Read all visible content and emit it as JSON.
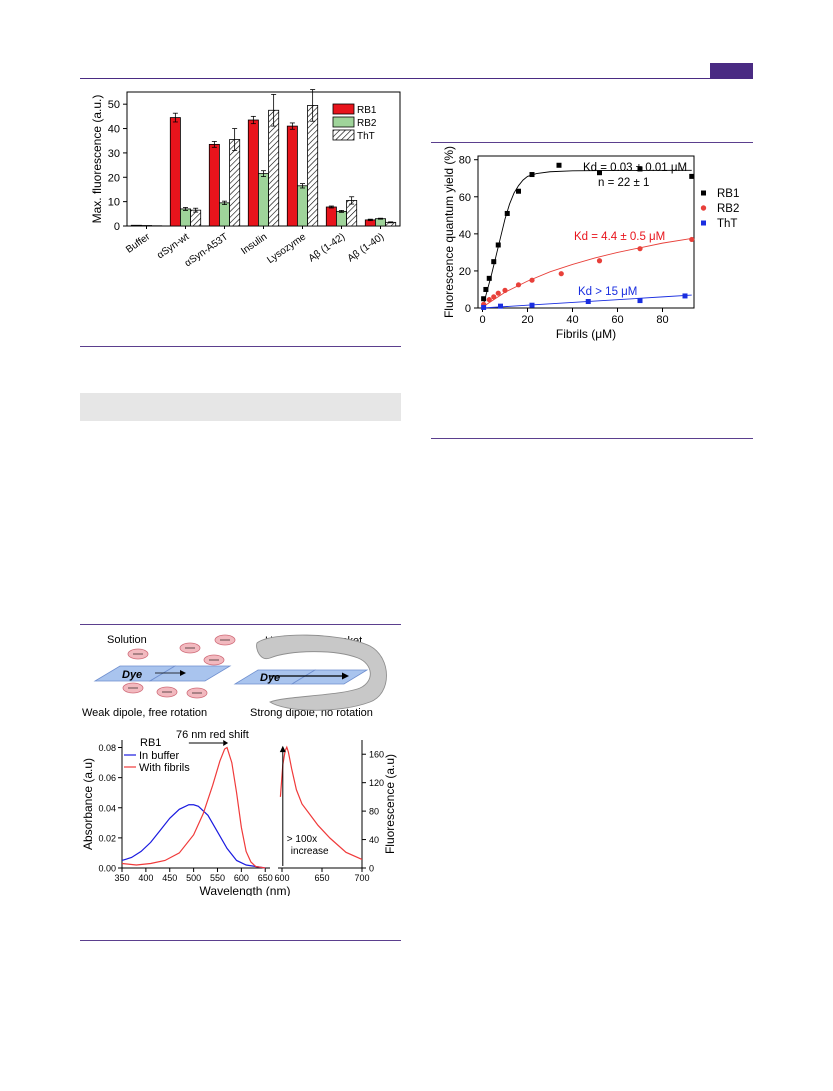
{
  "figure_a": {
    "chart_data": {
      "type": "bar",
      "ylabel": "Max. fluorescence (a.u.)",
      "ylim": [
        0,
        55
      ],
      "yticks": [
        0,
        10,
        20,
        30,
        40,
        50
      ],
      "categories": [
        "Buffer",
        "αSyn-wt",
        "αSyn-A53T",
        "Insulin",
        "Lysozyme",
        "Aβ (1-42)",
        "Aβ (1-40)"
      ],
      "series": [
        {
          "name": "RB1",
          "color": "#e8141c",
          "values": [
            0.3,
            44.5,
            33.5,
            43.5,
            41,
            7.8,
            2.5
          ],
          "errors": [
            0,
            1.8,
            1.2,
            1.5,
            1.3,
            0.4,
            0.3
          ]
        },
        {
          "name": "RB2",
          "color": "#9fd49a",
          "values": [
            0.2,
            7,
            9.5,
            21.5,
            16.5,
            6,
            3
          ],
          "errors": [
            0,
            0.6,
            0.7,
            1.2,
            0.9,
            0.4,
            0.2
          ]
        },
        {
          "name": "ThT",
          "color": "hatch",
          "values": [
            0.1,
            6.5,
            35.5,
            47.5,
            49.5,
            10.5,
            1.5
          ],
          "errors": [
            0,
            0.8,
            4.5,
            6.5,
            6.5,
            1.5,
            0.2
          ]
        }
      ],
      "legend_position": "top-right"
    }
  },
  "figure_b": {
    "chart_data": {
      "type": "scatter",
      "xlabel": "Fibrils (μM)",
      "ylabel": "Fluorescence quantum yield (%)",
      "xlim": [
        -2,
        94
      ],
      "ylim": [
        0,
        82
      ],
      "xticks": [
        0,
        20,
        40,
        60,
        80
      ],
      "yticks": [
        0,
        20,
        40,
        60,
        80
      ],
      "series": [
        {
          "name": "RB1",
          "color": "#000000",
          "marker": "square",
          "points": [
            [
              0.5,
              5
            ],
            [
              1.5,
              10
            ],
            [
              3,
              16
            ],
            [
              5,
              25
            ],
            [
              7,
              34
            ],
            [
              11,
              51
            ],
            [
              16,
              63
            ],
            [
              22,
              72
            ],
            [
              34,
              77
            ],
            [
              52,
              73
            ],
            [
              70,
              75
            ],
            [
              93,
              71
            ]
          ]
        },
        {
          "name": "RB2",
          "color": "#e8403a",
          "marker": "circle",
          "points": [
            [
              0.5,
              2
            ],
            [
              3,
              4.5
            ],
            [
              5,
              6
            ],
            [
              7,
              8
            ],
            [
              10,
              9.5
            ],
            [
              16,
              12.5
            ],
            [
              22,
              15
            ],
            [
              35,
              18.5
            ],
            [
              52,
              25.5
            ],
            [
              70,
              32
            ],
            [
              93,
              37
            ]
          ]
        },
        {
          "name": "ThT",
          "color": "#1a2ee0",
          "marker": "square",
          "points": [
            [
              0.5,
              0.3
            ],
            [
              8,
              1
            ],
            [
              22,
              1.5
            ],
            [
              47,
              3.5
            ],
            [
              70,
              4
            ],
            [
              90,
              6.5
            ]
          ]
        }
      ],
      "annotations": [
        {
          "text": "Kd = 0.03 ± 0.01 μM",
          "color": "#000000"
        },
        {
          "text": "n = 22 ± 1",
          "color": "#000000"
        },
        {
          "text": "Kd = 4.4 ± 0.5 μM",
          "color": "#e8141c"
        },
        {
          "text": "Kd > 15 μM",
          "color": "#1a2ee0"
        }
      ],
      "legend_position": "right"
    }
  },
  "figure_c": {
    "scheme": {
      "solution_label": "Solution",
      "pocket_label": "Hydrophobic pocket",
      "dye_label": "Dye",
      "left_caption": "Weak dipole, free rotation",
      "right_caption": "Strong dipole, no rotation"
    },
    "chart_data": {
      "type": "line",
      "title_annotation": "76 nm red shift",
      "dye_label": "RB1",
      "xlabel": "Wavelength (nm)",
      "ylabel_left": "Absorbance (a.u)",
      "ylabel_right": "Fluorescence (a.u)",
      "left_xlim": [
        350,
        660
      ],
      "left_xticks": [
        350,
        400,
        450,
        500,
        550,
        600,
        650
      ],
      "ylim_left": [
        0,
        0.085
      ],
      "yticks_left": [
        "0.00",
        "0.02",
        "0.04",
        "0.06",
        "0.08"
      ],
      "right_xlim": [
        595,
        700
      ],
      "right_xticks": [
        600,
        650,
        700
      ],
      "ylim_right": [
        0,
        180
      ],
      "yticks_right": [
        0,
        40,
        80,
        120,
        160
      ],
      "increase_note_line1": "> 100x",
      "increase_note_line2": "increase",
      "series": [
        {
          "name": "In buffer",
          "color": "#1a1ae0",
          "axis": "left",
          "x": [
            350,
            370,
            390,
            410,
            430,
            450,
            470,
            490,
            500,
            510,
            530,
            550,
            570,
            590,
            610,
            630,
            650
          ],
          "y": [
            0.005,
            0.007,
            0.011,
            0.017,
            0.025,
            0.033,
            0.039,
            0.042,
            0.042,
            0.041,
            0.035,
            0.024,
            0.013,
            0.005,
            0.002,
            0.001,
            0.0
          ]
        },
        {
          "name": "With fibrils",
          "color": "#f03a3a",
          "axis": "left",
          "x": [
            350,
            380,
            410,
            440,
            470,
            500,
            520,
            540,
            555,
            565,
            570,
            580,
            590,
            600,
            610,
            620,
            630,
            650
          ],
          "y": [
            0.003,
            0.002,
            0.003,
            0.005,
            0.01,
            0.022,
            0.036,
            0.055,
            0.071,
            0.079,
            0.08,
            0.07,
            0.05,
            0.027,
            0.011,
            0.004,
            0.001,
            0.0
          ]
        },
        {
          "name": "Fluorescence",
          "color": "#f03a3a",
          "axis": "right",
          "x": [
            598,
            601,
            604,
            606,
            608,
            612,
            618,
            625,
            635,
            645,
            660,
            680,
            700
          ],
          "y": [
            100,
            145,
            165,
            170,
            163,
            140,
            110,
            90,
            75,
            60,
            42,
            22,
            12
          ]
        }
      ]
    }
  }
}
